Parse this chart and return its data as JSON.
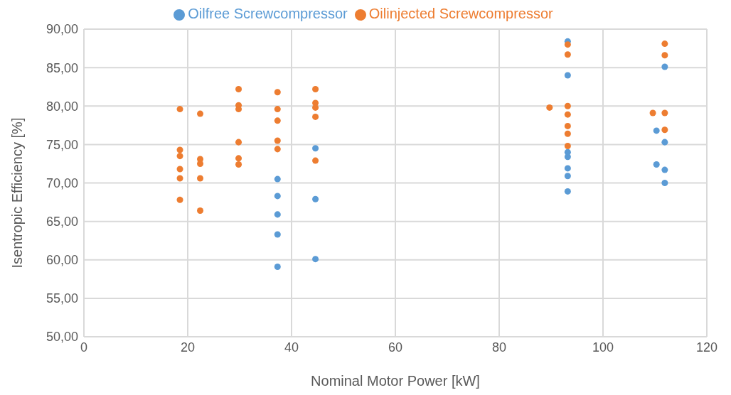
{
  "chart_data": {
    "type": "scatter",
    "xlabel": "Nominal Motor Power [kW]",
    "ylabel": "Isentropic Efficiency [%]",
    "xlim": [
      0,
      120
    ],
    "xticks": [
      0,
      20,
      40,
      60,
      80,
      100,
      120
    ],
    "ylim": [
      50,
      90
    ],
    "yticks": [
      {
        "value": 50,
        "label": "50,00"
      },
      {
        "value": 55,
        "label": "55,00"
      },
      {
        "value": 60,
        "label": "60,00"
      },
      {
        "value": 65,
        "label": "65,00"
      },
      {
        "value": 70,
        "label": "70,00"
      },
      {
        "value": 75,
        "label": "75,00"
      },
      {
        "value": 80,
        "label": "80,00"
      },
      {
        "value": 85,
        "label": "85,00"
      },
      {
        "value": 90,
        "label": "90,00"
      }
    ],
    "grid": true,
    "legend": "top",
    "marker": "circle",
    "series": [
      {
        "name": "Oilfree Screwcompressor",
        "color": "#5b9bd5",
        "x": [
          37.3,
          37.3,
          37.3,
          37.3,
          37.3,
          44.6,
          44.6,
          44.6,
          93.2,
          93.2,
          93.2,
          93.2,
          93.2,
          93.2,
          93.2,
          111.9,
          111.9,
          111.9,
          111.9,
          110.3,
          110.3
        ],
        "values": [
          70.5,
          68.3,
          65.9,
          63.3,
          59.1,
          74.5,
          67.9,
          60.1,
          88.4,
          84.0,
          74.0,
          73.4,
          71.9,
          70.9,
          68.9,
          85.1,
          75.3,
          71.7,
          70.0,
          76.8,
          72.4
        ]
      },
      {
        "name": "Oilinjected Screwcompressor",
        "color": "#ed7d31",
        "x": [
          18.5,
          18.5,
          18.5,
          18.5,
          18.5,
          18.5,
          22.4,
          22.4,
          22.4,
          22.4,
          22.4,
          29.8,
          29.8,
          29.8,
          29.8,
          29.8,
          29.8,
          37.3,
          37.3,
          37.3,
          37.3,
          37.3,
          44.6,
          44.6,
          44.6,
          44.6,
          44.6,
          89.7,
          93.2,
          93.2,
          93.2,
          93.2,
          93.2,
          93.2,
          93.2,
          109.6,
          111.9,
          111.9,
          111.9,
          111.9
        ],
        "values": [
          79.6,
          74.3,
          73.5,
          71.8,
          70.6,
          67.8,
          79.0,
          73.1,
          72.5,
          70.6,
          66.4,
          82.2,
          80.1,
          79.6,
          75.3,
          73.2,
          72.4,
          81.8,
          79.6,
          78.1,
          75.5,
          74.4,
          82.2,
          80.4,
          79.8,
          78.6,
          72.9,
          79.8,
          88.0,
          86.7,
          80.0,
          78.9,
          77.4,
          76.4,
          74.8,
          79.1,
          88.1,
          86.6,
          79.1,
          76.9
        ]
      }
    ]
  }
}
